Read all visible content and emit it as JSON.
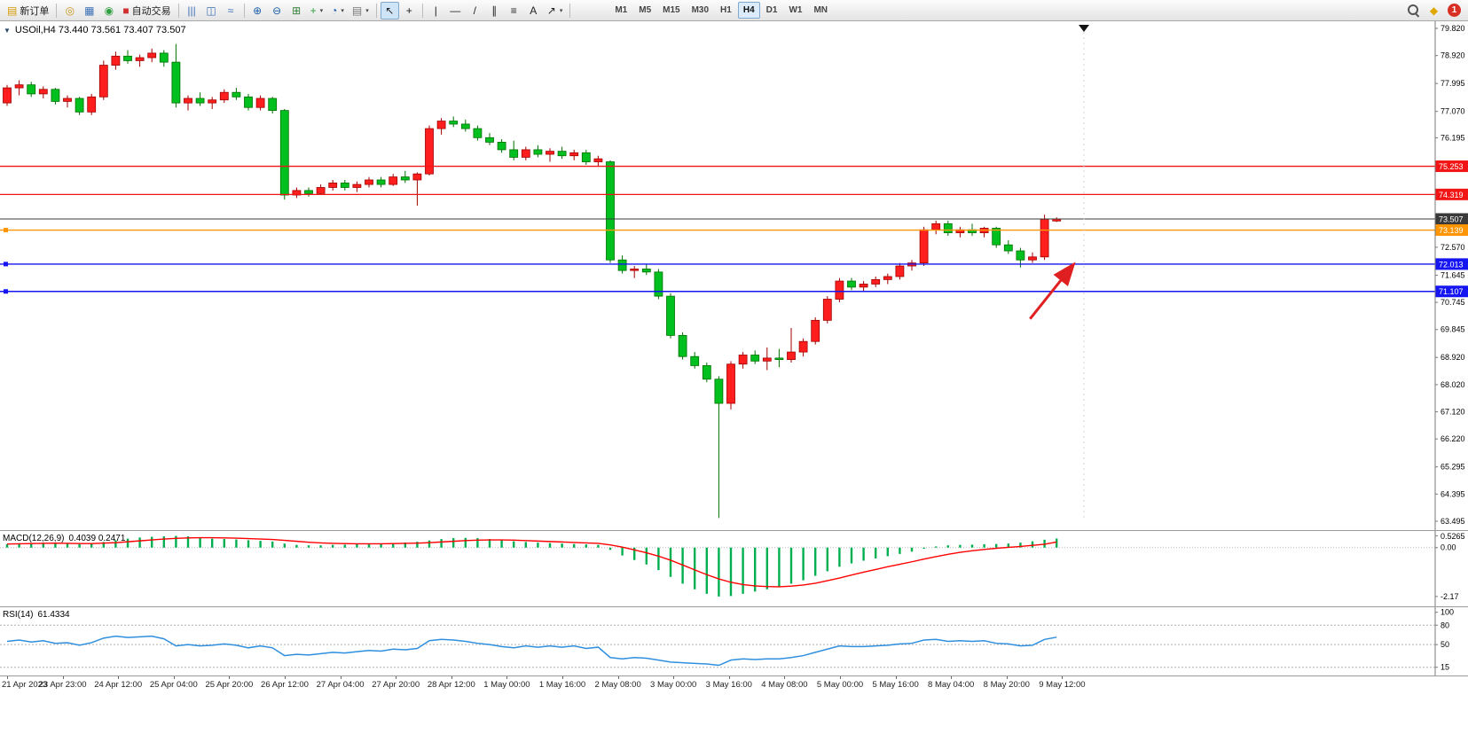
{
  "toolbar": {
    "notification_count": "1",
    "timeframes": [
      {
        "label": "M1"
      },
      {
        "label": "M5"
      },
      {
        "label": "M15"
      },
      {
        "label": "M30"
      },
      {
        "label": "H1"
      },
      {
        "label": "H4",
        "active": true
      },
      {
        "label": "D1"
      },
      {
        "label": "W1"
      },
      {
        "label": "MN"
      }
    ],
    "items": [
      {
        "kind": "labeled",
        "name": "new-order-button",
        "icon": "order-ticket-icon",
        "glyph": "▤",
        "glyph_color": "#d79b00",
        "label": "新订单"
      },
      {
        "kind": "sep"
      },
      {
        "kind": "icon",
        "name": "market-watch-button",
        "icon": "coins-icon",
        "glyph": "◎",
        "glyph_color": "#c8941a"
      },
      {
        "kind": "icon",
        "name": "data-window-button",
        "icon": "chart-window-icon",
        "glyph": "▦",
        "glyph_color": "#3b6fb5"
      },
      {
        "kind": "icon",
        "name": "sound-button",
        "icon": "speaker-icon",
        "glyph": "◉",
        "glyph_color": "#2e9e3e"
      },
      {
        "kind": "labeled",
        "name": "auto-trading-button",
        "icon": "autotrading-stop-icon",
        "glyph": "■",
        "glyph_color": "#d03030",
        "label": "自动交易"
      },
      {
        "kind": "sep"
      },
      {
        "kind": "icon",
        "name": "bar-chart-button",
        "icon": "ohlc-bars-icon",
        "glyph": "|||",
        "glyph_color": "#3b6fb5"
      },
      {
        "kind": "icon",
        "name": "candlestick-chart-button",
        "icon": "candlestick-icon",
        "glyph": "◫",
        "glyph_color": "#3b6fb5"
      },
      {
        "kind": "icon",
        "name": "line-chart-button",
        "icon": "line-chart-icon",
        "glyph": "≈",
        "glyph_color": "#3b6fb5"
      },
      {
        "kind": "sep"
      },
      {
        "kind": "icon",
        "name": "zoom-in-button",
        "icon": "zoom-in-icon",
        "glyph": "⊕",
        "glyph_color": "#1b5eab"
      },
      {
        "kind": "icon",
        "name": "zoom-out-button",
        "icon": "zoom-out-icon",
        "glyph": "⊖",
        "glyph_color": "#1b5eab"
      },
      {
        "kind": "icon",
        "name": "tile-windows-button",
        "icon": "tile-windows-icon",
        "glyph": "⊞",
        "glyph_color": "#2e7d32"
      },
      {
        "kind": "icon",
        "name": "new-chart-button",
        "icon": "new-chart-icon",
        "glyph": "+",
        "glyph_color": "#2e9e3e",
        "caret": true
      },
      {
        "kind": "icon",
        "name": "periods-button",
        "icon": "clock-icon",
        "glyph": "◔",
        "glyph_color": "#1b5eab",
        "caret": true
      },
      {
        "kind": "icon",
        "name": "templates-button",
        "icon": "template-icon",
        "glyph": "▤",
        "glyph_color": "#777777",
        "caret": true
      },
      {
        "kind": "sep"
      },
      {
        "kind": "icon",
        "name": "cursor-button",
        "icon": "cursor-icon",
        "glyph": "↖",
        "glyph_color": "#222222",
        "active": true
      },
      {
        "kind": "icon",
        "name": "crosshair-button",
        "icon": "crosshair-icon",
        "glyph": "+",
        "glyph_color": "#222222"
      },
      {
        "kind": "sep"
      },
      {
        "kind": "icon",
        "name": "vertical-line-button",
        "icon": "vertical-line-icon",
        "glyph": "|",
        "glyph_color": "#222222"
      },
      {
        "kind": "icon",
        "name": "horizontal-line-button",
        "icon": "horizontal-line-icon",
        "glyph": "—",
        "glyph_color": "#222222"
      },
      {
        "kind": "icon",
        "name": "trendline-button",
        "icon": "trendline-icon",
        "glyph": "/",
        "glyph_color": "#222222"
      },
      {
        "kind": "icon",
        "name": "channel-button",
        "icon": "channel-icon",
        "glyph": "∥",
        "glyph_color": "#222222"
      },
      {
        "kind": "icon",
        "name": "fibonacci-button",
        "icon": "fibonacci-icon",
        "glyph": "≡",
        "glyph_color": "#222222"
      },
      {
        "kind": "icon",
        "name": "text-button",
        "icon": "text-label-icon",
        "glyph": "A",
        "glyph_color": "#222222"
      },
      {
        "kind": "icon",
        "name": "arrows-button",
        "icon": "arrow-objects-icon",
        "glyph": "↗",
        "glyph_color": "#222222",
        "caret": true
      },
      {
        "kind": "sep"
      },
      {
        "kind": "timeframes"
      },
      {
        "kind": "spacer"
      },
      {
        "kind": "search",
        "name": "search-button",
        "icon": "search-icon"
      },
      {
        "kind": "icon",
        "name": "alerts-button",
        "icon": "alert-icon",
        "glyph": "◆",
        "glyph_color": "#e0a800"
      },
      {
        "kind": "badge",
        "name": "notification-badge",
        "label": "1"
      }
    ]
  },
  "chart_header": {
    "title": "USOil,H4 73.440 73.561 73.407 73.507"
  },
  "indicators": {
    "macd": {
      "label": "MACD(12,26,9)",
      "values": "0.4039 0.2471"
    },
    "rsi": {
      "label": "RSI(14)",
      "value": "61.4334"
    }
  },
  "price_axis": {
    "ticks": [
      "79.820",
      "78.920",
      "77.995",
      "77.070",
      "76.195",
      "72.570",
      "71.645",
      "70.745",
      "69.845",
      "68.920",
      "68.020",
      "67.120",
      "66.220",
      "65.295",
      "64.395",
      "63.495"
    ],
    "badges": [
      {
        "value": "75.253",
        "color": "#f21515"
      },
      {
        "value": "74.319",
        "color": "#f21515"
      },
      {
        "value": "73.507",
        "color": "#3a3a3a"
      },
      {
        "value": "73.139",
        "color": "#ff9500"
      },
      {
        "value": "72.013",
        "color": "#1515f2"
      },
      {
        "value": "71.107",
        "color": "#1515f2"
      }
    ]
  },
  "chart_data": [
    {
      "type": "candlestick",
      "symbol": "USOil",
      "timeframe": "H4",
      "ohlc_display": "73.440 73.561 73.407 73.507",
      "up_color": "#ff1e1e",
      "down_color": "#00c020",
      "ylim": [
        63.495,
        79.82
      ],
      "x_labels": [
        "21 Apr 2023",
        "23 Apr 23:00",
        "24 Apr 12:00",
        "25 Apr 04:00",
        "25 Apr 20:00",
        "26 Apr 12:00",
        "27 Apr 04:00",
        "27 Apr 20:00",
        "28 Apr 12:00",
        "1 May 00:00",
        "1 May 16:00",
        "2 May 08:00",
        "3 May 00:00",
        "3 May 16:00",
        "4 May 08:00",
        "5 May 00:00",
        "5 May 16:00",
        "8 May 04:00",
        "8 May 20:00",
        "9 May 12:00"
      ],
      "hlines": [
        {
          "value": 75.253,
          "color": "#f21515",
          "width": 1.3
        },
        {
          "value": 74.319,
          "color": "#f21515",
          "width": 1.3
        },
        {
          "value": 73.507,
          "color": "#3a3a3a",
          "width": 1
        },
        {
          "value": 73.139,
          "color": "#ff9500",
          "width": 1.4,
          "marker": true
        },
        {
          "value": 72.013,
          "color": "#1515f2",
          "width": 1.4,
          "marker": true
        },
        {
          "value": 71.107,
          "color": "#1515f2",
          "width": 1.4,
          "marker": true
        }
      ],
      "annotation": {
        "type": "arrow",
        "color": "#e02020",
        "from": {
          "bar": 84.8,
          "price": 70.2
        },
        "to": {
          "bar": 88.3,
          "price": 71.95
        }
      },
      "ohlc": [
        [
          77.35,
          77.95,
          77.25,
          77.85
        ],
        [
          77.85,
          78.1,
          77.6,
          77.95
        ],
        [
          77.95,
          78.05,
          77.55,
          77.65
        ],
        [
          77.65,
          77.9,
          77.5,
          77.8
        ],
        [
          77.8,
          77.85,
          77.3,
          77.4
        ],
        [
          77.4,
          77.6,
          77.2,
          77.5
        ],
        [
          77.5,
          77.55,
          76.95,
          77.05
        ],
        [
          77.05,
          77.65,
          76.95,
          77.55
        ],
        [
          77.55,
          78.75,
          77.45,
          78.6
        ],
        [
          78.6,
          79.05,
          78.45,
          78.9
        ],
        [
          78.9,
          79.1,
          78.65,
          78.75
        ],
        [
          78.75,
          78.95,
          78.55,
          78.85
        ],
        [
          78.85,
          79.15,
          78.7,
          79.0
        ],
        [
          79.0,
          79.1,
          78.55,
          78.7
        ],
        [
          78.7,
          79.3,
          77.2,
          77.35
        ],
        [
          77.35,
          77.6,
          77.1,
          77.5
        ],
        [
          77.5,
          77.7,
          77.25,
          77.35
        ],
        [
          77.35,
          77.55,
          77.15,
          77.45
        ],
        [
          77.45,
          77.8,
          77.35,
          77.7
        ],
        [
          77.7,
          77.85,
          77.45,
          77.55
        ],
        [
          77.55,
          77.65,
          77.1,
          77.2
        ],
        [
          77.2,
          77.6,
          77.1,
          77.5
        ],
        [
          77.5,
          77.55,
          77.0,
          77.1
        ],
        [
          77.1,
          77.15,
          74.15,
          74.3
        ],
        [
          74.3,
          74.55,
          74.2,
          74.45
        ],
        [
          74.45,
          74.55,
          74.25,
          74.35
        ],
        [
          74.35,
          74.65,
          74.3,
          74.55
        ],
        [
          74.55,
          74.8,
          74.45,
          74.7
        ],
        [
          74.7,
          74.8,
          74.45,
          74.55
        ],
        [
          74.55,
          74.75,
          74.4,
          74.65
        ],
        [
          74.65,
          74.9,
          74.55,
          74.8
        ],
        [
          74.8,
          74.9,
          74.55,
          74.65
        ],
        [
          74.65,
          75.0,
          74.6,
          74.9
        ],
        [
          74.9,
          75.1,
          74.7,
          74.8
        ],
        [
          74.8,
          75.05,
          73.95,
          75.0
        ],
        [
          75.0,
          76.6,
          74.95,
          76.5
        ],
        [
          76.5,
          76.85,
          76.3,
          76.75
        ],
        [
          76.75,
          76.9,
          76.55,
          76.65
        ],
        [
          76.65,
          76.8,
          76.4,
          76.5
        ],
        [
          76.5,
          76.6,
          76.1,
          76.2
        ],
        [
          76.2,
          76.35,
          75.95,
          76.05
        ],
        [
          76.05,
          76.15,
          75.7,
          75.8
        ],
        [
          75.8,
          76.1,
          75.45,
          75.55
        ],
        [
          75.55,
          75.9,
          75.45,
          75.8
        ],
        [
          75.8,
          75.95,
          75.55,
          75.65
        ],
        [
          75.65,
          75.85,
          75.4,
          75.75
        ],
        [
          75.75,
          75.9,
          75.5,
          75.6
        ],
        [
          75.6,
          75.8,
          75.45,
          75.7
        ],
        [
          75.7,
          75.8,
          75.3,
          75.4
        ],
        [
          75.4,
          75.6,
          75.25,
          75.5
        ],
        [
          75.4,
          75.45,
          72.05,
          72.15
        ],
        [
          72.15,
          72.3,
          71.7,
          71.8
        ],
        [
          71.8,
          71.95,
          71.55,
          71.85
        ],
        [
          71.85,
          72.0,
          71.65,
          71.75
        ],
        [
          71.75,
          71.85,
          70.85,
          70.95
        ],
        [
          70.95,
          71.05,
          69.55,
          69.65
        ],
        [
          69.65,
          69.75,
          68.85,
          68.95
        ],
        [
          68.95,
          69.1,
          68.55,
          68.65
        ],
        [
          68.65,
          68.75,
          68.1,
          68.2
        ],
        [
          68.2,
          68.3,
          63.6,
          67.4
        ],
        [
          67.4,
          68.8,
          67.2,
          68.7
        ],
        [
          68.7,
          69.1,
          68.55,
          69.0
        ],
        [
          69.0,
          69.15,
          68.7,
          68.8
        ],
        [
          68.8,
          69.25,
          68.5,
          68.9
        ],
        [
          68.9,
          69.2,
          68.6,
          68.85
        ],
        [
          68.85,
          69.9,
          68.75,
          69.1
        ],
        [
          69.1,
          69.55,
          68.95,
          69.45
        ],
        [
          69.45,
          70.25,
          69.35,
          70.15
        ],
        [
          70.15,
          70.95,
          70.05,
          70.85
        ],
        [
          70.85,
          71.55,
          70.75,
          71.45
        ],
        [
          71.45,
          71.55,
          71.15,
          71.25
        ],
        [
          71.25,
          71.45,
          71.1,
          71.35
        ],
        [
          71.35,
          71.6,
          71.25,
          71.5
        ],
        [
          71.5,
          71.7,
          71.35,
          71.6
        ],
        [
          71.6,
          72.05,
          71.5,
          71.95
        ],
        [
          71.95,
          72.15,
          71.8,
          72.05
        ],
        [
          72.05,
          73.25,
          71.95,
          73.15
        ],
        [
          73.15,
          73.45,
          73.0,
          73.35
        ],
        [
          73.35,
          73.45,
          72.95,
          73.05
        ],
        [
          73.05,
          73.25,
          72.9,
          73.15
        ],
        [
          73.15,
          73.35,
          72.95,
          73.05
        ],
        [
          73.05,
          73.25,
          72.9,
          73.2
        ],
        [
          73.2,
          73.25,
          72.55,
          72.65
        ],
        [
          72.65,
          72.8,
          72.35,
          72.45
        ],
        [
          72.45,
          72.55,
          71.9,
          72.15
        ],
        [
          72.15,
          72.4,
          72.05,
          72.25
        ],
        [
          72.25,
          73.65,
          72.15,
          73.5
        ],
        [
          73.44,
          73.561,
          73.407,
          73.507
        ]
      ]
    },
    {
      "type": "bar",
      "name": "MACD(12,26,9)",
      "current_values": [
        0.4039,
        0.2471
      ],
      "ylim": [
        -2.45,
        0.58
      ],
      "axis_ticks": [
        "0.5265",
        "0.00",
        "-2.17"
      ],
      "colors": {
        "histogram": "#00b050",
        "signal": "#ff0000"
      },
      "histogram": [
        0.15,
        0.18,
        0.2,
        0.22,
        0.2,
        0.18,
        0.15,
        0.18,
        0.25,
        0.33,
        0.4,
        0.45,
        0.48,
        0.5,
        0.52,
        0.5,
        0.45,
        0.4,
        0.38,
        0.36,
        0.33,
        0.3,
        0.27,
        0.18,
        0.12,
        0.1,
        0.1,
        0.12,
        0.13,
        0.15,
        0.17,
        0.18,
        0.2,
        0.23,
        0.26,
        0.32,
        0.38,
        0.42,
        0.43,
        0.42,
        0.38,
        0.33,
        0.28,
        0.25,
        0.22,
        0.2,
        0.18,
        0.16,
        0.14,
        0.12,
        -0.1,
        -0.35,
        -0.55,
        -0.75,
        -1.0,
        -1.3,
        -1.6,
        -1.85,
        -2.05,
        -2.17,
        -2.15,
        -2.05,
        -1.95,
        -1.85,
        -1.75,
        -1.6,
        -1.45,
        -1.25,
        -1.05,
        -0.85,
        -0.7,
        -0.58,
        -0.48,
        -0.38,
        -0.28,
        -0.18,
        -0.05,
        0.05,
        0.1,
        0.12,
        0.13,
        0.15,
        0.16,
        0.18,
        0.22,
        0.28,
        0.35,
        0.4039
      ],
      "signal_line": [
        0.16,
        0.17,
        0.18,
        0.19,
        0.2,
        0.19,
        0.18,
        0.18,
        0.2,
        0.22,
        0.26,
        0.3,
        0.34,
        0.38,
        0.41,
        0.43,
        0.44,
        0.44,
        0.43,
        0.42,
        0.4,
        0.38,
        0.36,
        0.32,
        0.28,
        0.24,
        0.21,
        0.19,
        0.18,
        0.17,
        0.17,
        0.17,
        0.18,
        0.19,
        0.2,
        0.22,
        0.25,
        0.28,
        0.31,
        0.33,
        0.34,
        0.34,
        0.33,
        0.31,
        0.29,
        0.27,
        0.25,
        0.23,
        0.21,
        0.19,
        0.12,
        0.02,
        -0.1,
        -0.23,
        -0.38,
        -0.56,
        -0.77,
        -0.99,
        -1.2,
        -1.39,
        -1.54,
        -1.64,
        -1.7,
        -1.73,
        -1.74,
        -1.71,
        -1.66,
        -1.58,
        -1.47,
        -1.35,
        -1.22,
        -1.09,
        -0.97,
        -0.85,
        -0.74,
        -0.63,
        -0.51,
        -0.4,
        -0.3,
        -0.21,
        -0.14,
        -0.08,
        -0.03,
        0.01,
        0.05,
        0.1,
        0.15,
        0.2471
      ]
    },
    {
      "type": "line",
      "name": "RSI(14)",
      "current_value": 61.4334,
      "ylim": [
        5,
        105
      ],
      "levels": [
        80,
        50,
        15
      ],
      "axis_ticks": [
        "100",
        "80",
        "50",
        "15"
      ],
      "color": "#2f8fde",
      "values": [
        55,
        57,
        54,
        56,
        52,
        53,
        49,
        53,
        60,
        63,
        61,
        62,
        63,
        59,
        48,
        50,
        48,
        49,
        51,
        49,
        45,
        48,
        45,
        33,
        35,
        34,
        36,
        38,
        37,
        39,
        41,
        40,
        43,
        42,
        44,
        56,
        58,
        57,
        55,
        52,
        50,
        47,
        45,
        48,
        46,
        48,
        46,
        48,
        44,
        46,
        30,
        28,
        30,
        29,
        26,
        23,
        22,
        21,
        20,
        18,
        26,
        28,
        27,
        28,
        28,
        30,
        33,
        38,
        43,
        48,
        47,
        47,
        48,
        49,
        51,
        52,
        57,
        58,
        55,
        56,
        55,
        56,
        52,
        51,
        48,
        49,
        58,
        61.43
      ]
    }
  ]
}
